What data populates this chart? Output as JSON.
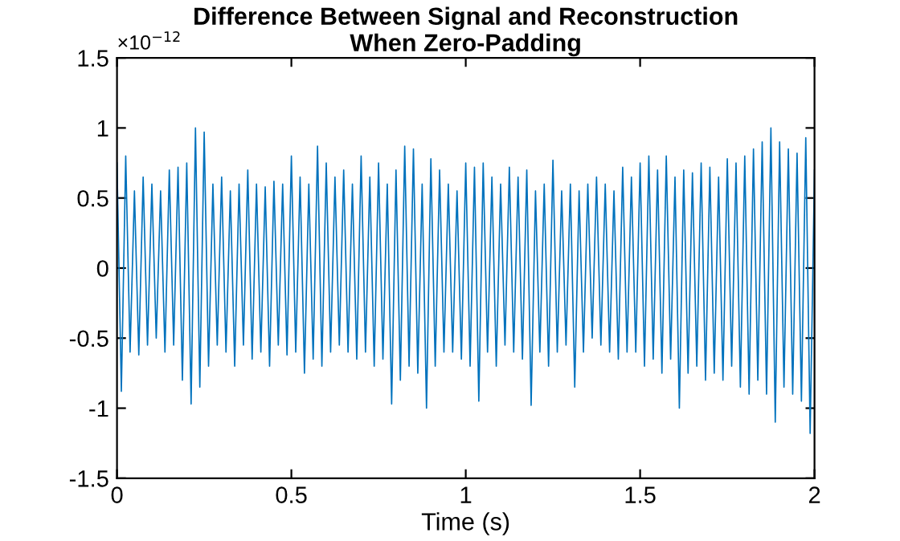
{
  "chart_data": {
    "type": "line",
    "title": "Difference Between Signal and Reconstruction\nWhen Zero-Padding",
    "xlabel": "Time (s)",
    "annotations": [
      "×10$^{−12}$"
    ],
    "xlim": [
      0,
      2
    ],
    "xticks": [
      0,
      0.5,
      1,
      1.5,
      2
    ],
    "ylim": [
      -1.5,
      1.5
    ],
    "yticks": [
      -1.5,
      -1,
      -0.5,
      0,
      0.5,
      1,
      1.5
    ],
    "grid": false,
    "legend": false,
    "line_style": "solid",
    "x": [
      0,
      0.0125,
      0.025,
      0.0375,
      0.05,
      0.0625,
      0.075,
      0.0875,
      0.1,
      0.1125,
      0.125,
      0.1375,
      0.15,
      0.1625,
      0.175,
      0.1875,
      0.2,
      0.2125,
      0.225,
      0.2375,
      0.25,
      0.2625,
      0.275,
      0.2875,
      0.3,
      0.3125,
      0.325,
      0.3375,
      0.35,
      0.3625,
      0.375,
      0.3875,
      0.4,
      0.4125,
      0.425,
      0.4375,
      0.45,
      0.4625,
      0.475,
      0.4875,
      0.5,
      0.5125,
      0.525,
      0.5375,
      0.55,
      0.5625,
      0.575,
      0.5875,
      0.6,
      0.6125,
      0.625,
      0.6375,
      0.65,
      0.6625,
      0.675,
      0.6875,
      0.7,
      0.7125,
      0.725,
      0.7375,
      0.75,
      0.7625,
      0.775,
      0.7875,
      0.8,
      0.8125,
      0.825,
      0.8375,
      0.85,
      0.8625,
      0.875,
      0.8875,
      0.9,
      0.9125,
      0.925,
      0.9375,
      0.95,
      0.9625,
      0.975,
      0.9875,
      1,
      1.0125,
      1.025,
      1.0375,
      1.05,
      1.0625,
      1.075,
      1.0875,
      1.1,
      1.1125,
      1.125,
      1.1375,
      1.15,
      1.1625,
      1.175,
      1.1875,
      1.2,
      1.2125,
      1.225,
      1.2375,
      1.25,
      1.2625,
      1.275,
      1.2875,
      1.3,
      1.3125,
      1.325,
      1.3375,
      1.35,
      1.3625,
      1.375,
      1.3875,
      1.4,
      1.4125,
      1.425,
      1.4375,
      1.45,
      1.4625,
      1.475,
      1.4875,
      1.5,
      1.5125,
      1.525,
      1.5375,
      1.55,
      1.5625,
      1.575,
      1.5875,
      1.6,
      1.6125,
      1.625,
      1.6375,
      1.65,
      1.6625,
      1.675,
      1.6875,
      1.7,
      1.7125,
      1.725,
      1.7375,
      1.75,
      1.7625,
      1.775,
      1.7875,
      1.8,
      1.8125,
      1.825,
      1.8375,
      1.85,
      1.8625,
      1.875,
      1.8875,
      1.9,
      1.9125,
      1.925,
      1.9375,
      1.95,
      1.9625,
      1.975,
      1.9875,
      2
    ],
    "series": [
      {
        "color": "#0072bd",
        "values": [
          0.75,
          -0.88,
          0.8,
          -0.6,
          0.55,
          -0.62,
          0.65,
          -0.55,
          0.6,
          -0.5,
          0.55,
          -0.6,
          0.7,
          -0.55,
          0.72,
          -0.8,
          0.75,
          -0.97,
          1.0,
          -0.85,
          0.97,
          -0.7,
          0.6,
          -0.55,
          0.65,
          -0.6,
          0.55,
          -0.7,
          0.6,
          -0.55,
          0.7,
          -0.65,
          0.6,
          -0.6,
          0.58,
          -0.7,
          0.62,
          -0.55,
          0.6,
          -0.62,
          0.8,
          -0.6,
          0.65,
          -0.75,
          0.6,
          -0.65,
          0.87,
          -0.7,
          0.75,
          -0.6,
          0.65,
          -0.55,
          0.7,
          -0.6,
          0.6,
          -0.65,
          0.8,
          -0.6,
          0.65,
          -0.7,
          0.75,
          -0.65,
          0.6,
          -0.97,
          0.7,
          -0.8,
          0.87,
          -0.7,
          0.85,
          -0.75,
          0.6,
          -1.0,
          0.78,
          -0.7,
          0.7,
          -0.6,
          0.6,
          -0.6,
          0.55,
          -0.65,
          0.75,
          -0.7,
          0.72,
          -0.95,
          0.75,
          -0.6,
          0.65,
          -0.7,
          0.6,
          -0.55,
          0.72,
          -0.6,
          0.65,
          -0.65,
          0.7,
          -0.98,
          0.55,
          -0.6,
          0.6,
          -0.7,
          0.77,
          -0.6,
          0.55,
          -0.55,
          0.6,
          -0.85,
          0.55,
          -0.6,
          0.6,
          -0.5,
          0.65,
          -0.55,
          0.6,
          -0.6,
          0.55,
          -0.65,
          0.72,
          -0.6,
          0.65,
          -0.6,
          0.75,
          -0.7,
          0.8,
          -0.65,
          0.7,
          -0.75,
          0.8,
          -0.65,
          0.65,
          -1.0,
          0.7,
          -0.75,
          0.68,
          -0.7,
          0.75,
          -0.8,
          0.72,
          -0.75,
          0.65,
          -0.8,
          0.78,
          -0.7,
          0.75,
          -0.85,
          0.8,
          -0.9,
          0.85,
          -0.8,
          0.9,
          -0.9,
          1.0,
          -1.1,
          0.9,
          -0.85,
          0.85,
          -0.9,
          0.82,
          -0.95,
          0.93,
          -1.18,
          0.7
        ]
      }
    ]
  }
}
